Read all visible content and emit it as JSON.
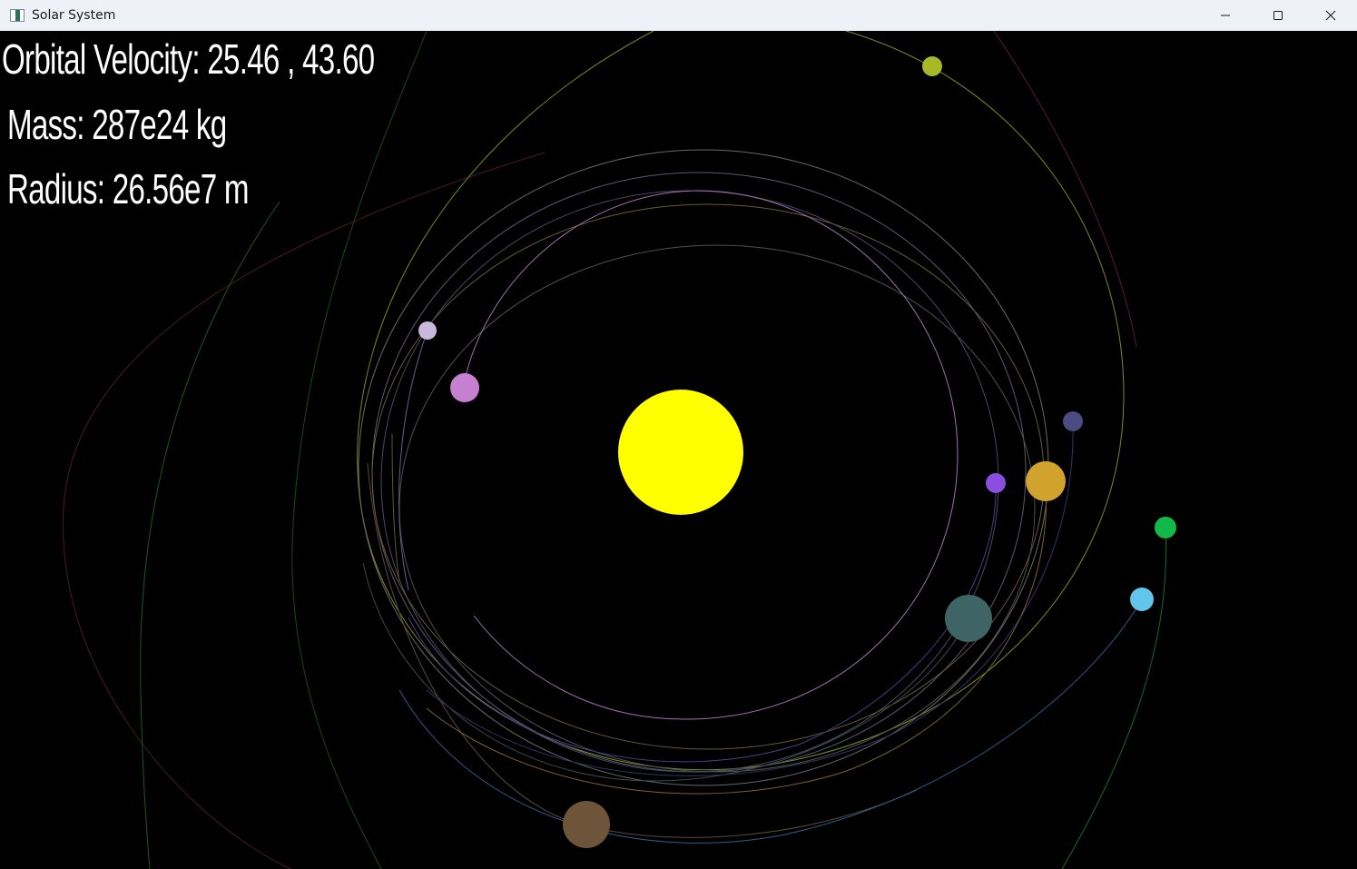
{
  "window": {
    "title": "Solar System",
    "icon": "app-window-icon",
    "controls": [
      "minimize-icon",
      "maximize-icon",
      "close-icon"
    ]
  },
  "hud": {
    "velocity": "Orbital Velocity: 25.46 , 43.60",
    "mass": "Mass: 287e24 kg",
    "radius": "Radius: 26.56e7 m"
  },
  "scene": {
    "background": "#000000",
    "sun": {
      "color": "#ffff00"
    },
    "planets": [
      {
        "name": "planet-yellowgreen",
        "color": "#a8b82a",
        "orbit_color": "#8f9a2a"
      },
      {
        "name": "planet-lavender",
        "color": "#c8b8dc",
        "orbit_color": "#7a6e9a"
      },
      {
        "name": "planet-orchid",
        "color": "#c77fd2",
        "orbit_color": "#a070b0"
      },
      {
        "name": "planet-slateblue",
        "color": "#4b4b82",
        "orbit_color": "#3c3c70"
      },
      {
        "name": "planet-violet",
        "color": "#8a4fe0",
        "orbit_color": "#5a3c9a"
      },
      {
        "name": "planet-gold",
        "color": "#d2a22e",
        "orbit_color": "#8a7030"
      },
      {
        "name": "planet-green",
        "color": "#12b84a",
        "orbit_color": "#1a6a2a"
      },
      {
        "name": "planet-skyblue",
        "color": "#62c6ec",
        "orbit_color": "#2f5a8a"
      },
      {
        "name": "planet-teal",
        "color": "#3f6466",
        "orbit_color": "#4a5a5a"
      },
      {
        "name": "planet-brown",
        "color": "#6e5439",
        "orbit_color": "#6a5a3a"
      }
    ]
  }
}
